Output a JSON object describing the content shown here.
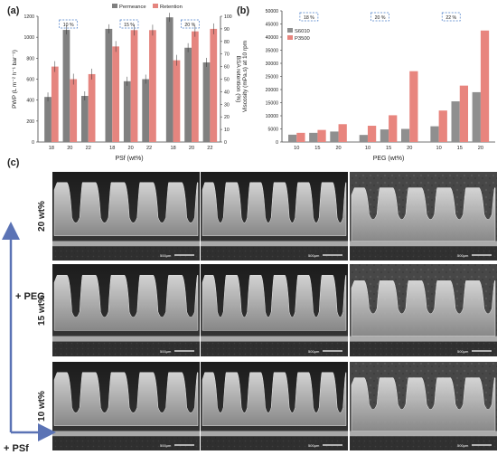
{
  "panels": {
    "a": "(a)",
    "b": "(b)",
    "c": "(c)"
  },
  "colors": {
    "permeance": "#808080",
    "retention": "#e5857f",
    "s6010": "#8f8f8f",
    "p3500": "#e8857e",
    "retention_axis": "#c0392b",
    "dash_box": "#4a7dc8",
    "arrow": "#5b73b5",
    "green_label": "#1e6b3c"
  },
  "chart_data": [
    {
      "type": "bar",
      "panel": "a",
      "xlabel": "PSf (wt%)",
      "ylabel": "PWP (L m⁻² h⁻¹ bar⁻¹)",
      "y2label": "BSA retention (%)",
      "ylim": [
        0,
        1200
      ],
      "y2lim": [
        0,
        100
      ],
      "yticks": [
        0,
        200,
        400,
        600,
        800,
        1000,
        1200
      ],
      "y2ticks": [
        0,
        10,
        20,
        30,
        40,
        50,
        60,
        70,
        80,
        90,
        100
      ],
      "groups": [
        {
          "tag": "10 %",
          "categories": [
            "18",
            "20",
            "22"
          ]
        },
        {
          "tag": "15 %",
          "categories": [
            "18",
            "20",
            "22"
          ]
        },
        {
          "tag": "20 %",
          "categories": [
            "18",
            "20",
            "22"
          ]
        }
      ],
      "series": [
        {
          "name": "Permeance",
          "axis": "left",
          "values": [
            430,
            1070,
            440,
            1080,
            580,
            600,
            1190,
            900,
            760
          ]
        },
        {
          "name": "Retention",
          "axis": "right",
          "values": [
            60,
            50,
            54,
            76,
            89,
            89,
            65,
            88,
            90
          ]
        }
      ],
      "legend": "top"
    },
    {
      "type": "bar",
      "panel": "b",
      "xlabel": "PEG (wt%)",
      "ylabel": "Viscosity (mPa.s) at 10 rpm",
      "ylim": [
        0,
        50000
      ],
      "yticks": [
        0,
        5000,
        10000,
        15000,
        20000,
        25000,
        30000,
        35000,
        40000,
        45000,
        50000
      ],
      "groups": [
        {
          "tag": "18 %",
          "categories": [
            "10",
            "15",
            "20"
          ]
        },
        {
          "tag": "20 %",
          "categories": [
            "10",
            "15",
            "20"
          ]
        },
        {
          "tag": "22 %",
          "categories": [
            "10",
            "15",
            "20"
          ]
        }
      ],
      "series": [
        {
          "name": "S6010",
          "values": [
            2800,
            3500,
            4000,
            2700,
            4800,
            5000,
            6000,
            15500,
            19000
          ]
        },
        {
          "name": "P3500",
          "values": [
            3500,
            4600,
            6800,
            6200,
            10200,
            27000,
            12000,
            21500,
            42500
          ]
        }
      ],
      "legend": "top-left"
    }
  ],
  "sem_panel": {
    "row_labels": [
      "20 wt%",
      "15 wt%",
      "10 wt%"
    ],
    "scale_label": "500μm",
    "arrow_peg": "+ PEG",
    "arrow_psf": "+ PSf"
  }
}
